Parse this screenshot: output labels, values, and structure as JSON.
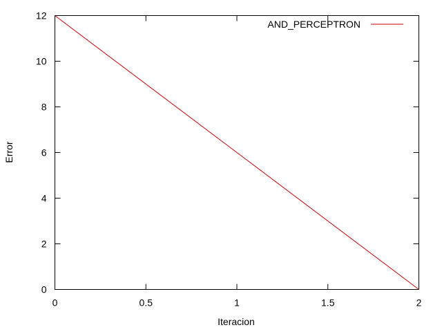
{
  "chart_data": {
    "type": "line",
    "xlabel": "Iteracion",
    "ylabel": "Error",
    "xlim": [
      0,
      2
    ],
    "ylim": [
      0,
      12
    ],
    "xticks": [
      0,
      0.5,
      1,
      1.5,
      2
    ],
    "xtick_labels": [
      "0",
      "0.5",
      "1",
      "1.5",
      "2"
    ],
    "yticks": [
      0,
      2,
      4,
      6,
      8,
      10,
      12
    ],
    "ytick_labels": [
      "0",
      "2",
      "4",
      "6",
      "8",
      "10",
      "12"
    ],
    "grid": false,
    "legend_position": "top-right",
    "series": [
      {
        "name": "AND_PERCEPTRON",
        "color": "#cc0000",
        "x": [
          0,
          1,
          2
        ],
        "y": [
          12,
          6,
          0
        ]
      }
    ]
  }
}
